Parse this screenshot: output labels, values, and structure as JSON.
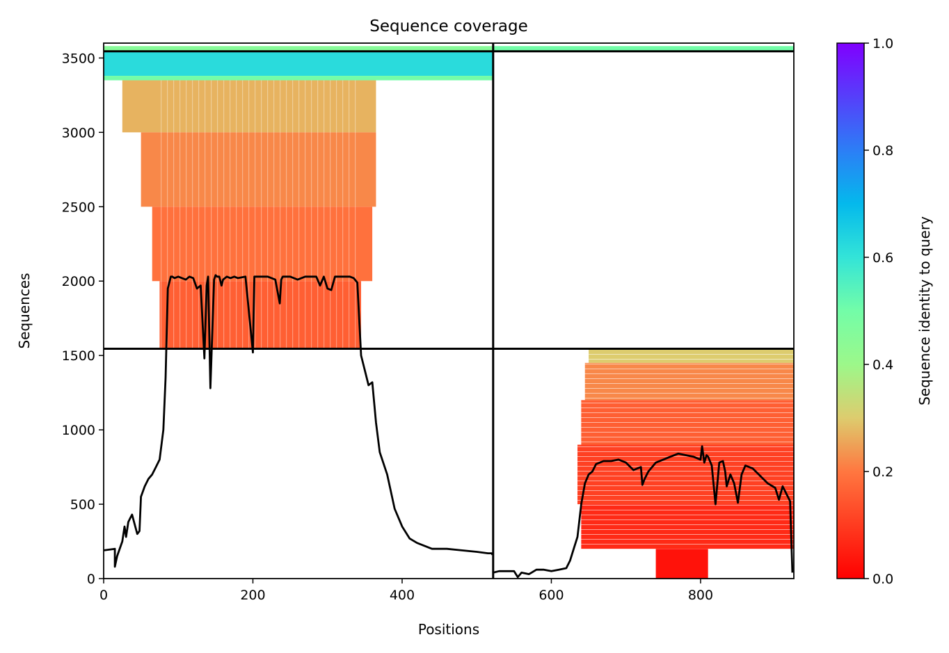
{
  "chart_data": {
    "type": "heatmap",
    "title": "Sequence coverage",
    "xlabel": "Positions",
    "ylabel": "Sequences",
    "xlim": [
      0,
      925
    ],
    "ylim": [
      0,
      3600
    ],
    "x_ticks": [
      {
        "value": 0,
        "label": "0"
      },
      {
        "value": 200,
        "label": "200"
      },
      {
        "value": 400,
        "label": "400"
      },
      {
        "value": 600,
        "label": "600"
      },
      {
        "value": 800,
        "label": "800"
      }
    ],
    "y_ticks": [
      {
        "value": 0,
        "label": "0"
      },
      {
        "value": 500,
        "label": "500"
      },
      {
        "value": 1000,
        "label": "1000"
      },
      {
        "value": 1500,
        "label": "1500"
      },
      {
        "value": 2000,
        "label": "2000"
      },
      {
        "value": 2500,
        "label": "2500"
      },
      {
        "value": 3000,
        "label": "3000"
      },
      {
        "value": 3500,
        "label": "3500"
      }
    ],
    "colorbar": {
      "label": "Sequence identity to query",
      "range": [
        0,
        1
      ],
      "colormap": "rainbow_r",
      "ticks": [
        {
          "value": 0.0,
          "label": "0.0"
        },
        {
          "value": 0.2,
          "label": "0.2"
        },
        {
          "value": 0.4,
          "label": "0.4"
        },
        {
          "value": 0.6,
          "label": "0.6"
        },
        {
          "value": 0.8,
          "label": "0.8"
        },
        {
          "value": 1.0,
          "label": "1.0"
        }
      ]
    },
    "chain_boundaries": {
      "x": [
        522
      ],
      "y": [
        1545,
        3545
      ]
    },
    "coverage_blocks": [
      {
        "x_start": 0,
        "x_end": 522,
        "y_start": 3545,
        "y_end": 3580,
        "identity": 0.45
      },
      {
        "x_start": 0,
        "x_end": 522,
        "y_start": 3380,
        "y_end": 3545,
        "identity": 0.62
      },
      {
        "x_start": 0,
        "x_end": 522,
        "y_start": 3350,
        "y_end": 3380,
        "identity": 0.5
      },
      {
        "x_start": 25,
        "x_end": 365,
        "y_start": 3000,
        "y_end": 3350,
        "identity": 0.27
      },
      {
        "x_start": 50,
        "x_end": 365,
        "y_start": 2500,
        "y_end": 3000,
        "identity": 0.22
      },
      {
        "x_start": 65,
        "x_end": 360,
        "y_start": 2000,
        "y_end": 2500,
        "identity": 0.19
      },
      {
        "x_start": 75,
        "x_end": 345,
        "y_start": 1545,
        "y_end": 2000,
        "identity": 0.16
      },
      {
        "x_start": 522,
        "x_end": 925,
        "y_start": 3545,
        "y_end": 3580,
        "identity": 0.5
      },
      {
        "x_start": 650,
        "x_end": 925,
        "y_start": 1450,
        "y_end": 1545,
        "identity": 0.3
      },
      {
        "x_start": 645,
        "x_end": 925,
        "y_start": 1200,
        "y_end": 1450,
        "identity": 0.22
      },
      {
        "x_start": 640,
        "x_end": 925,
        "y_start": 900,
        "y_end": 1200,
        "identity": 0.16
      },
      {
        "x_start": 635,
        "x_end": 925,
        "y_start": 500,
        "y_end": 900,
        "identity": 0.11
      },
      {
        "x_start": 640,
        "x_end": 925,
        "y_start": 200,
        "y_end": 500,
        "identity": 0.07
      },
      {
        "x_start": 740,
        "x_end": 810,
        "y_start": 0,
        "y_end": 200,
        "identity": 0.03
      }
    ],
    "series": [
      {
        "x": [
          0,
          15,
          15,
          18,
          25,
          28,
          30,
          33,
          35,
          38,
          45,
          48,
          50,
          55,
          60,
          65,
          70,
          75,
          80,
          83,
          86,
          90,
          92,
          95,
          100,
          110,
          115,
          120,
          125,
          130,
          135,
          138,
          140,
          143,
          148,
          150,
          152,
          155,
          158,
          160,
          165,
          170,
          175,
          180,
          190,
          200,
          202,
          205,
          210,
          220,
          230,
          236,
          238,
          240,
          250,
          260,
          270,
          280,
          285,
          290,
          295,
          300,
          305,
          310,
          320,
          330,
          335,
          340,
          345,
          350,
          355,
          360,
          365,
          370,
          380,
          390,
          400,
          410,
          420,
          430,
          440,
          460,
          480,
          500,
          515,
          520,
          521
        ],
        "y": [
          190,
          200,
          80,
          150,
          250,
          350,
          280,
          380,
          400,
          430,
          300,
          320,
          550,
          620,
          670,
          700,
          750,
          800,
          1000,
          1350,
          1950,
          2030,
          2030,
          2020,
          2030,
          2010,
          2030,
          2020,
          1950,
          1970,
          1480,
          1970,
          2030,
          1280,
          2010,
          2040,
          2030,
          2030,
          1970,
          2010,
          2030,
          2020,
          2030,
          2020,
          2030,
          1520,
          2030,
          2030,
          2030,
          2030,
          2010,
          1850,
          2010,
          2030,
          2030,
          2010,
          2030,
          2030,
          2030,
          1970,
          2030,
          1950,
          1940,
          2030,
          2030,
          2030,
          2020,
          1990,
          1500,
          1400,
          1300,
          1320,
          1050,
          850,
          700,
          470,
          350,
          270,
          240,
          220,
          200,
          200,
          190,
          180,
          170,
          170,
          160
        ]
      },
      {
        "x": [
          522,
          530,
          550,
          555,
          560,
          570,
          580,
          590,
          600,
          610,
          620,
          625,
          630,
          635,
          640,
          645,
          650,
          655,
          660,
          670,
          680,
          690,
          700,
          710,
          720,
          722,
          725,
          730,
          740,
          750,
          760,
          770,
          780,
          790,
          800,
          802,
          805,
          808,
          810,
          815,
          820,
          825,
          830,
          833,
          835,
          840,
          845,
          850,
          855,
          860,
          865,
          870,
          880,
          890,
          900,
          905,
          910,
          915,
          920,
          923
        ],
        "y": [
          40,
          50,
          50,
          10,
          40,
          30,
          60,
          60,
          50,
          60,
          70,
          120,
          200,
          280,
          500,
          640,
          700,
          720,
          770,
          790,
          790,
          800,
          780,
          730,
          750,
          630,
          670,
          720,
          780,
          800,
          820,
          840,
          830,
          820,
          800,
          890,
          780,
          830,
          820,
          760,
          500,
          780,
          790,
          720,
          620,
          700,
          640,
          510,
          700,
          760,
          750,
          740,
          690,
          640,
          610,
          530,
          620,
          570,
          520,
          40
        ]
      }
    ]
  }
}
